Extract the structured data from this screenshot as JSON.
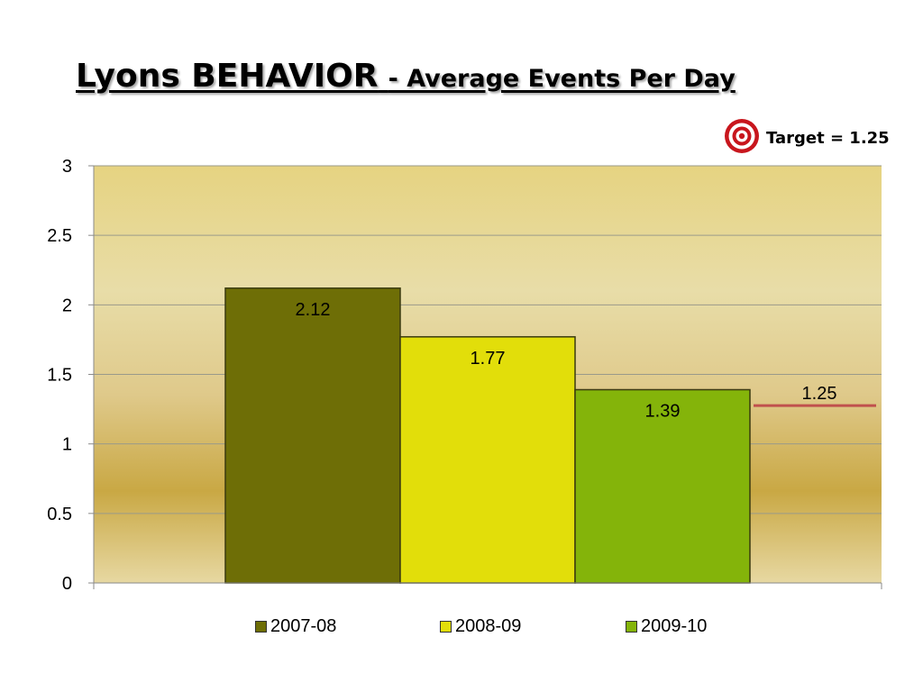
{
  "slide": {
    "title_main": "Lyons BEHAVIOR",
    "title_sub": "- Average Events Per Day"
  },
  "target_note": {
    "label": "Target = 1.25",
    "icon": "bullseye-target-icon"
  },
  "chart_data": {
    "type": "bar",
    "title": "",
    "xlabel": "",
    "ylabel": "",
    "ylim": [
      0,
      3
    ],
    "yticks": [
      "0",
      "0.5",
      "1",
      "1.5",
      "2",
      "2.5",
      "3"
    ],
    "grid": true,
    "legend_placement": "bottom",
    "series": [
      {
        "name": "2007-08",
        "value": 2.12,
        "label": "2.12",
        "color": "#6e6e06"
      },
      {
        "name": "2008-09",
        "value": 1.77,
        "label": "1.77",
        "color": "#e2de0a"
      },
      {
        "name": "2009-10",
        "value": 1.39,
        "label": "1.39",
        "color": "#84b40a"
      }
    ],
    "target": {
      "value": 1.25,
      "label": "1.25",
      "color": "#c0504d"
    }
  }
}
